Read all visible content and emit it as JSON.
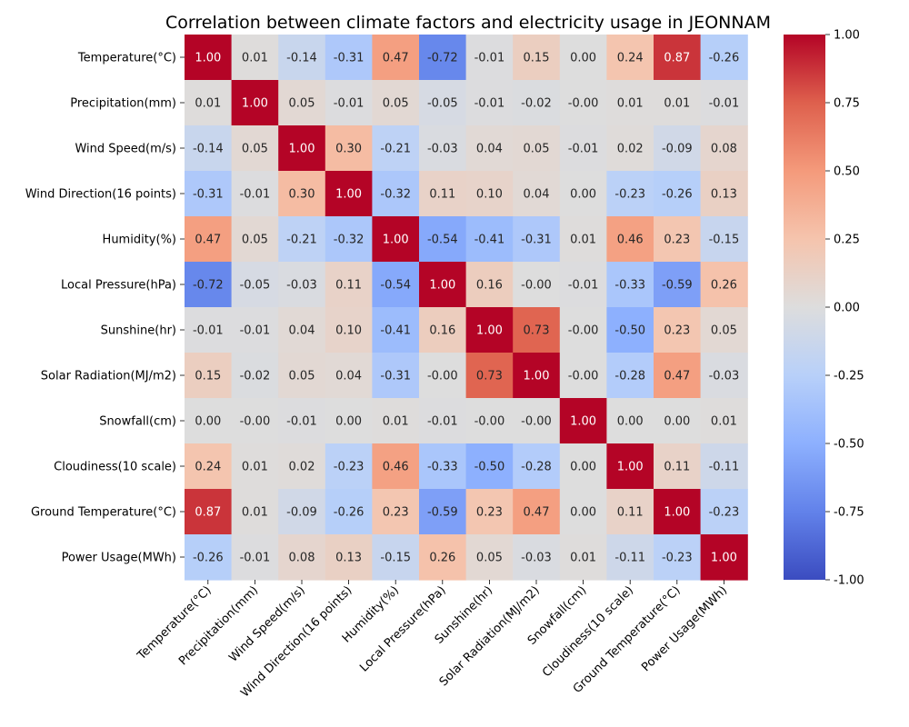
{
  "chart_data": {
    "type": "heatmap",
    "title": "Correlation between climate factors and electricity usage in JEONNAM",
    "labels": [
      "Temperature(°C)",
      "Precipitation(mm)",
      "Wind Speed(m/s)",
      "Wind Direction(16 points)",
      "Humidity(%)",
      "Local Pressure(hPa)",
      "Sunshine(hr)",
      "Solar Radiation(MJ/m2)",
      "Snowfall(cm)",
      "Cloudiness(10 scale)",
      "Ground Temperature(°C)",
      "Power Usage(MWh)"
    ],
    "matrix": [
      [
        1.0,
        0.01,
        -0.14,
        -0.31,
        0.47,
        -0.72,
        -0.01,
        0.15,
        0.0,
        0.24,
        0.87,
        -0.26
      ],
      [
        0.01,
        1.0,
        0.05,
        -0.01,
        0.05,
        -0.05,
        -0.01,
        -0.02,
        -0.0,
        0.01,
        0.01,
        -0.01
      ],
      [
        -0.14,
        0.05,
        1.0,
        0.3,
        -0.21,
        -0.03,
        0.04,
        0.05,
        -0.01,
        0.02,
        -0.09,
        0.08
      ],
      [
        -0.31,
        -0.01,
        0.3,
        1.0,
        -0.32,
        0.11,
        0.1,
        0.04,
        0.0,
        -0.23,
        -0.26,
        0.13
      ],
      [
        0.47,
        0.05,
        -0.21,
        -0.32,
        1.0,
        -0.54,
        -0.41,
        -0.31,
        0.01,
        0.46,
        0.23,
        -0.15
      ],
      [
        -0.72,
        -0.05,
        -0.03,
        0.11,
        -0.54,
        1.0,
        0.16,
        -0.0,
        -0.01,
        -0.33,
        -0.59,
        0.26
      ],
      [
        -0.01,
        -0.01,
        0.04,
        0.1,
        -0.41,
        0.16,
        1.0,
        0.73,
        -0.0,
        -0.5,
        0.23,
        0.05
      ],
      [
        0.15,
        -0.02,
        0.05,
        0.04,
        -0.31,
        -0.0,
        0.73,
        1.0,
        -0.0,
        -0.28,
        0.47,
        -0.03
      ],
      [
        0.0,
        -0.0,
        -0.01,
        0.0,
        0.01,
        -0.01,
        -0.0,
        -0.0,
        1.0,
        0.0,
        0.0,
        0.01
      ],
      [
        0.24,
        0.01,
        0.02,
        -0.23,
        0.46,
        -0.33,
        -0.5,
        -0.28,
        0.0,
        1.0,
        0.11,
        -0.11
      ],
      [
        0.87,
        0.01,
        -0.09,
        -0.26,
        0.23,
        -0.59,
        0.23,
        0.47,
        0.0,
        0.11,
        1.0,
        -0.23
      ],
      [
        -0.26,
        -0.01,
        0.08,
        0.13,
        -0.15,
        0.26,
        0.05,
        -0.03,
        0.01,
        -0.11,
        -0.23,
        1.0
      ]
    ],
    "cell_labels": [
      [
        "1.00",
        "0.01",
        "-0.14",
        "-0.31",
        "0.47",
        "-0.72",
        "-0.01",
        "0.15",
        "0.00",
        "0.24",
        "0.87",
        "-0.26"
      ],
      [
        "0.01",
        "1.00",
        "0.05",
        "-0.01",
        "0.05",
        "-0.05",
        "-0.01",
        "-0.02",
        "-0.00",
        "0.01",
        "0.01",
        "-0.01"
      ],
      [
        "-0.14",
        "0.05",
        "1.00",
        "0.30",
        "-0.21",
        "-0.03",
        "0.04",
        "0.05",
        "-0.01",
        "0.02",
        "-0.09",
        "0.08"
      ],
      [
        "-0.31",
        "-0.01",
        "0.30",
        "1.00",
        "-0.32",
        "0.11",
        "0.10",
        "0.04",
        "0.00",
        "-0.23",
        "-0.26",
        "0.13"
      ],
      [
        "0.47",
        "0.05",
        "-0.21",
        "-0.32",
        "1.00",
        "-0.54",
        "-0.41",
        "-0.31",
        "0.01",
        "0.46",
        "0.23",
        "-0.15"
      ],
      [
        "-0.72",
        "-0.05",
        "-0.03",
        "0.11",
        "-0.54",
        "1.00",
        "0.16",
        "-0.00",
        "-0.01",
        "-0.33",
        "-0.59",
        "0.26"
      ],
      [
        "-0.01",
        "-0.01",
        "0.04",
        "0.10",
        "-0.41",
        "0.16",
        "1.00",
        "0.73",
        "-0.00",
        "-0.50",
        "0.23",
        "0.05"
      ],
      [
        "0.15",
        "-0.02",
        "0.05",
        "0.04",
        "-0.31",
        "-0.00",
        "0.73",
        "1.00",
        "-0.00",
        "-0.28",
        "0.47",
        "-0.03"
      ],
      [
        "0.00",
        "-0.00",
        "-0.01",
        "0.00",
        "0.01",
        "-0.01",
        "-0.00",
        "-0.00",
        "1.00",
        "0.00",
        "0.00",
        "0.01"
      ],
      [
        "0.24",
        "0.01",
        "0.02",
        "-0.23",
        "0.46",
        "-0.33",
        "-0.50",
        "-0.28",
        "0.00",
        "1.00",
        "0.11",
        "-0.11"
      ],
      [
        "0.87",
        "0.01",
        "-0.09",
        "-0.26",
        "0.23",
        "-0.59",
        "0.23",
        "0.47",
        "0.00",
        "0.11",
        "1.00",
        "-0.23"
      ],
      [
        "-0.26",
        "-0.01",
        "0.08",
        "0.13",
        "-0.15",
        "0.26",
        "0.05",
        "-0.03",
        "0.01",
        "-0.11",
        "-0.23",
        "1.00"
      ]
    ],
    "colormap": "coolwarm",
    "vmin": -1.0,
    "vmax": 1.0,
    "colorbar_ticks": [
      "-1.00",
      "-0.75",
      "-0.50",
      "-0.25",
      "0.00",
      "0.25",
      "0.50",
      "0.75",
      "1.00"
    ],
    "colorbar_tick_values": [
      -1.0,
      -0.75,
      -0.5,
      -0.25,
      0.0,
      0.25,
      0.5,
      0.75,
      1.0
    ],
    "colorbar_position": "right",
    "grid": false
  }
}
